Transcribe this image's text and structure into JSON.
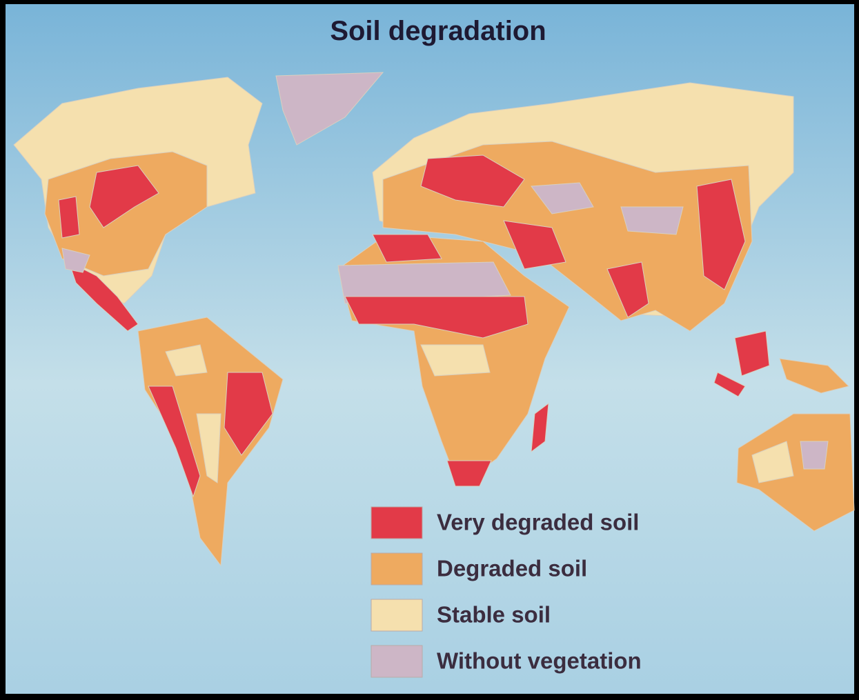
{
  "title": "Soil degradation",
  "legend": [
    {
      "label": "Very degraded soil",
      "color": "#e23a48"
    },
    {
      "label": "Degraded soil",
      "color": "#eeaa60"
    },
    {
      "label": "Stable soil",
      "color": "#f5e0ae"
    },
    {
      "label": "Without vegetation",
      "color": "#cdb6c6"
    }
  ]
}
